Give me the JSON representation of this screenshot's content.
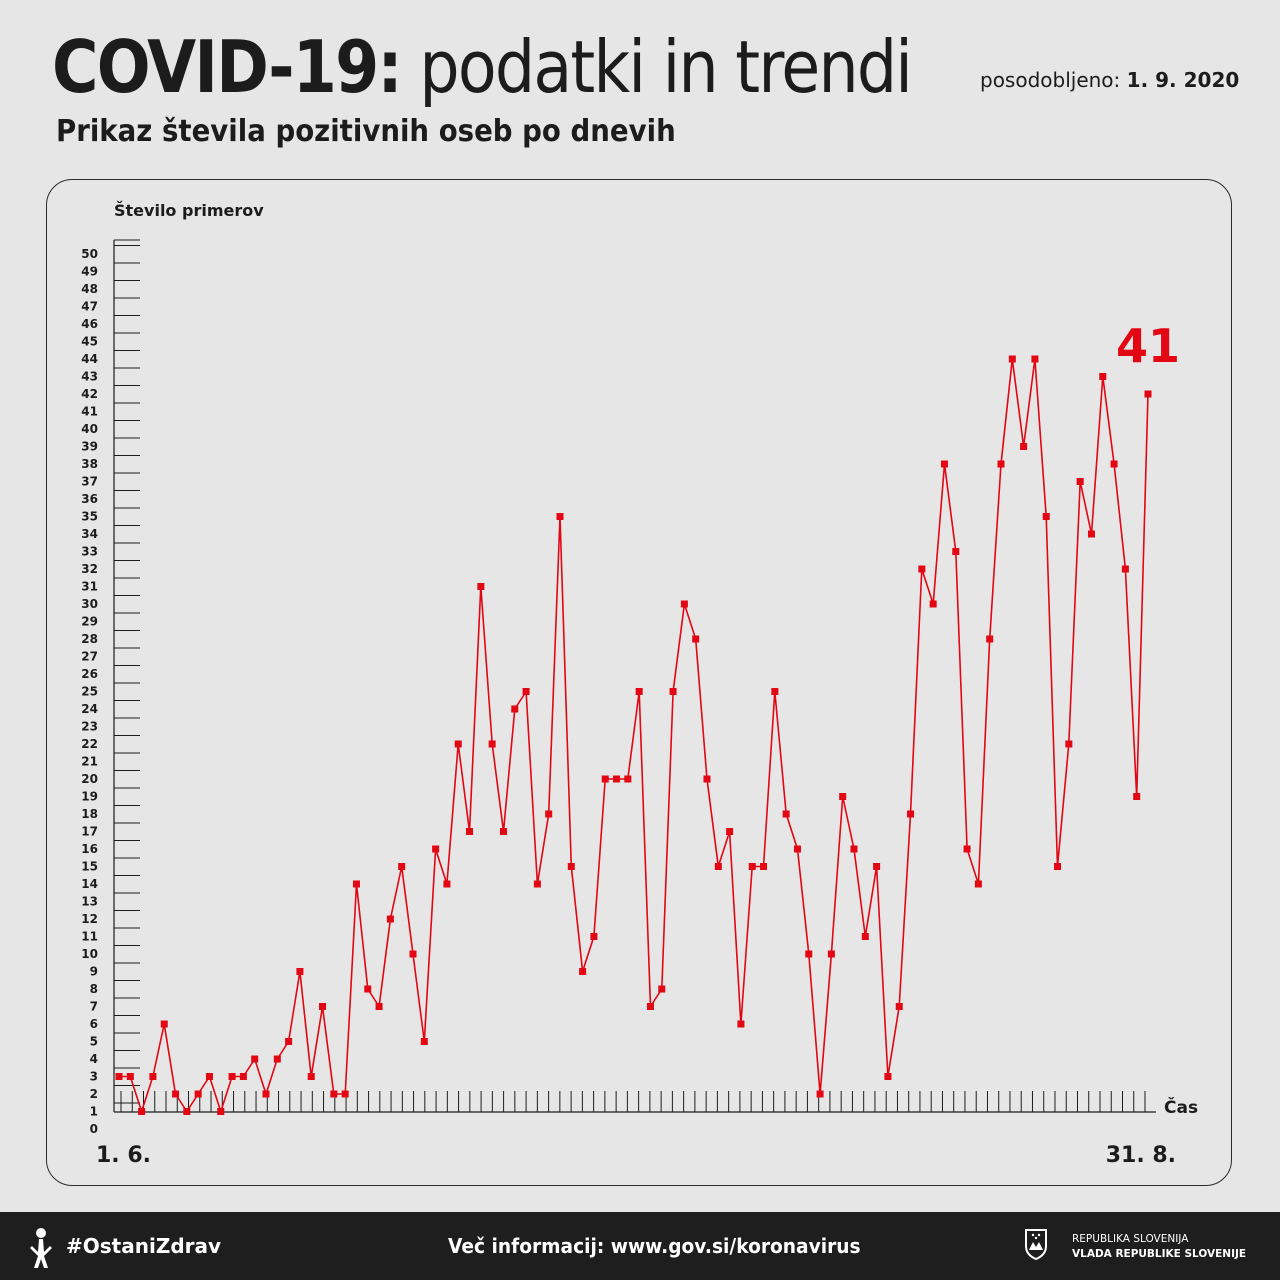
{
  "header": {
    "title_strong": "COVID-19:",
    "title_light": "podatki in trendi",
    "updated_label": "posodobljeno:",
    "updated_date": "1. 9. 2020",
    "subtitle": "Prikaz števila pozitivnih oseb po dnevih"
  },
  "chart_data": {
    "type": "line",
    "ylabel": "Število primerov",
    "xlabel": "Čas",
    "x_start_label": "1. 6.",
    "x_end_label": "31. 8.",
    "ylim": [
      0,
      50
    ],
    "y_ticks": [
      0,
      1,
      2,
      3,
      4,
      5,
      6,
      7,
      8,
      9,
      10,
      11,
      12,
      13,
      14,
      15,
      16,
      17,
      18,
      19,
      20,
      21,
      22,
      23,
      24,
      25,
      26,
      27,
      28,
      29,
      30,
      31,
      32,
      33,
      34,
      35,
      36,
      37,
      38,
      39,
      40,
      41,
      42,
      43,
      44,
      45,
      46,
      47,
      48,
      49,
      50
    ],
    "highlight_value": "41",
    "line_color": "#e30613",
    "series": [
      {
        "values": [
          3,
          3,
          1,
          3,
          6,
          2,
          1,
          2,
          3,
          1,
          3,
          3,
          4,
          2,
          4,
          5,
          9,
          3,
          7,
          2,
          2,
          14,
          8,
          7,
          12,
          15,
          10,
          5,
          16,
          14,
          22,
          17,
          31,
          22,
          17,
          24,
          25,
          14,
          18,
          35,
          15,
          9,
          11,
          20,
          20,
          20,
          25,
          7,
          8,
          25,
          30,
          28,
          20,
          15,
          17,
          6,
          15,
          15,
          25,
          18,
          16,
          10,
          2,
          10,
          19,
          16,
          11,
          15,
          3,
          7,
          18,
          32,
          30,
          38,
          33,
          16,
          14,
          28,
          38,
          44,
          39,
          44,
          35,
          15,
          22,
          37,
          34,
          43,
          38,
          32,
          19,
          42
        ]
      }
    ]
  },
  "footer": {
    "hashtag": "#OstaniZdrav",
    "info": "Več informacij: www.gov.si/koronavirus",
    "org_line1": "REPUBLIKA SLOVENIJA",
    "org_line2": "VLADA REPUBLIKE SLOVENIJE"
  },
  "icons": [
    "person-icon",
    "crest-icon"
  ]
}
